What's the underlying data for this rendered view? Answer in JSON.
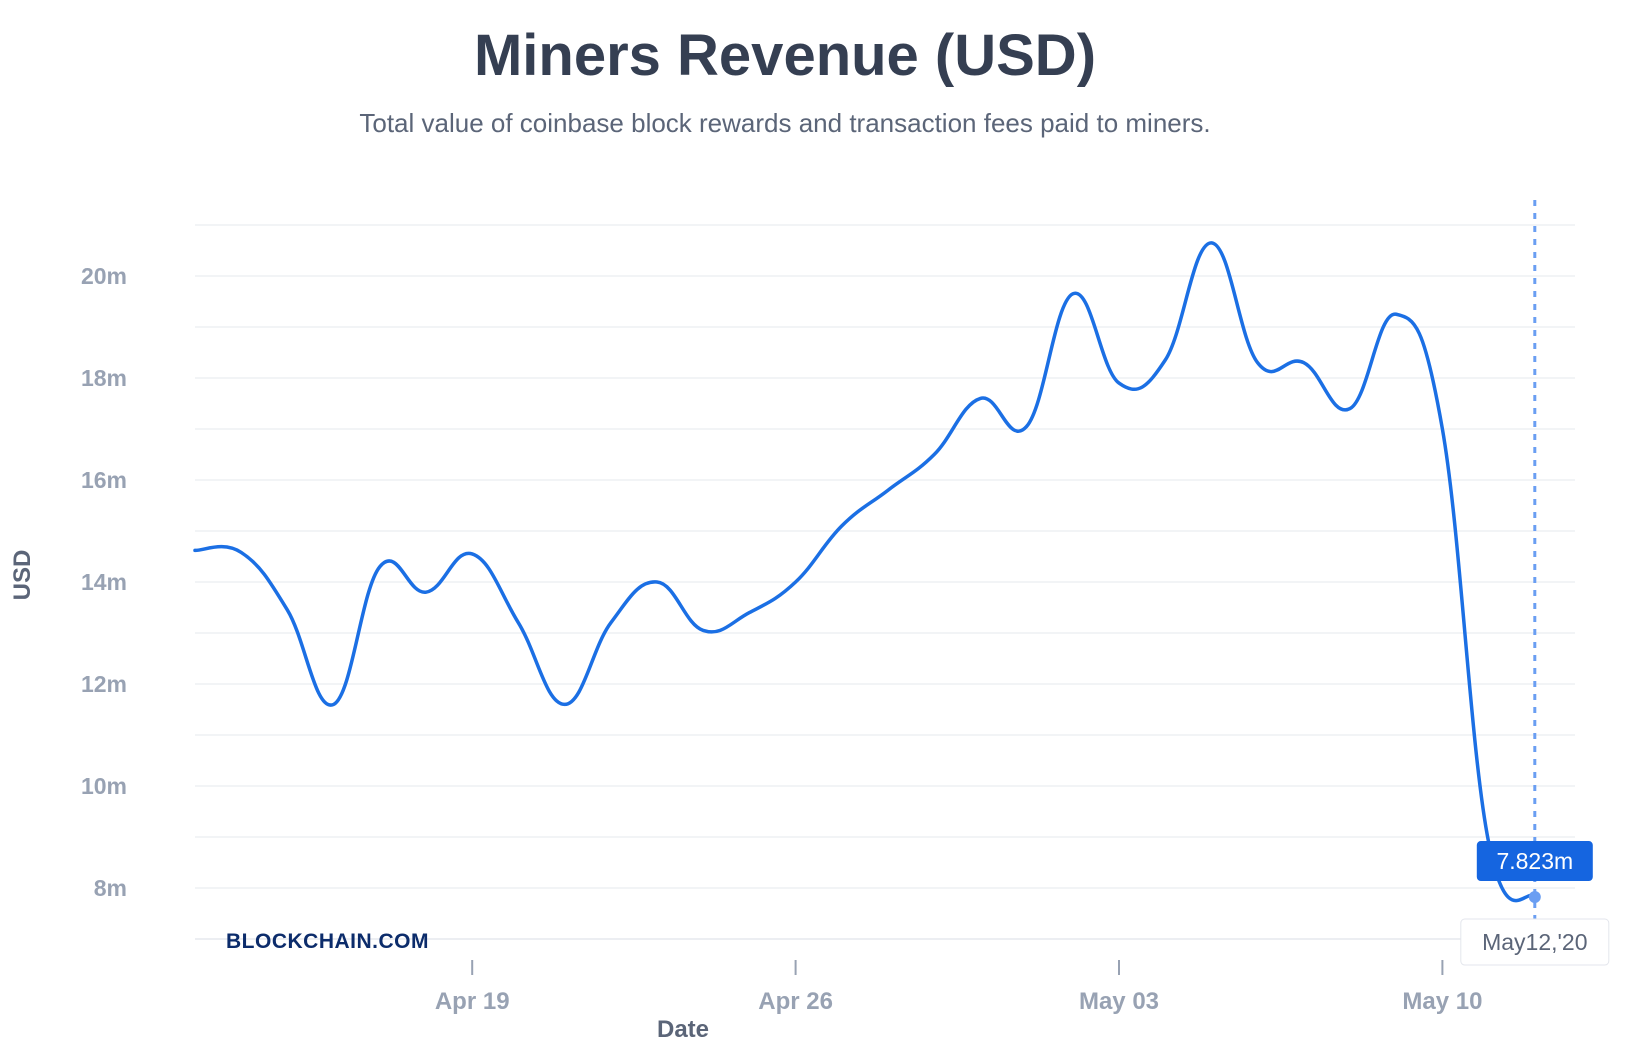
{
  "title": "Miners Revenue (USD)",
  "subtitle": "Total value of coinbase block rewards and transaction fees paid to miners.",
  "brand": "BLOCKCHAIN.COM",
  "tooltip": {
    "value": "7.823m",
    "date": "May12,'20"
  },
  "colors": {
    "line": "#1b6fe4",
    "grid": "#e6e8ee",
    "accent": "#1565e0",
    "marker": "#6a9ef2"
  },
  "chart_data": {
    "type": "line",
    "title": "Miners Revenue (USD)",
    "subtitle": "Total value of coinbase block rewards and transaction fees paid to miners.",
    "xlabel": "Date",
    "ylabel": "USD",
    "x": [
      "2020-04-13",
      "2020-04-14",
      "2020-04-15",
      "2020-04-16",
      "2020-04-17",
      "2020-04-18",
      "2020-04-19",
      "2020-04-20",
      "2020-04-21",
      "2020-04-22",
      "2020-04-23",
      "2020-04-24",
      "2020-04-25",
      "2020-04-26",
      "2020-04-27",
      "2020-04-28",
      "2020-04-29",
      "2020-04-30",
      "2020-05-01",
      "2020-05-02",
      "2020-05-03",
      "2020-05-04",
      "2020-05-05",
      "2020-05-06",
      "2020-05-07",
      "2020-05-08",
      "2020-05-09",
      "2020-05-10",
      "2020-05-11",
      "2020-05-12"
    ],
    "series": [
      {
        "values": [
          14.62,
          14.58,
          13.45,
          11.6,
          14.3,
          13.8,
          14.55,
          13.2,
          11.6,
          13.2,
          14.0,
          13.05,
          13.4,
          14.0,
          15.1,
          15.8,
          16.5,
          17.6,
          17.05,
          19.65,
          17.9,
          18.35,
          20.65,
          18.3,
          18.3,
          17.4,
          19.25,
          17.0,
          8.9,
          7.823
        ]
      }
    ],
    "x_ticks": [
      "Apr 19",
      "Apr 26",
      "May 03",
      "May 10"
    ],
    "y_ticks": [
      "8m",
      "10m",
      "12m",
      "14m",
      "16m",
      "18m",
      "20m"
    ],
    "y_tick_values": [
      8,
      10,
      12,
      14,
      16,
      18,
      20
    ],
    "ylim": [
      7,
      21
    ],
    "units": "millions USD",
    "grid": true,
    "highlight": {
      "date": "2020-05-12",
      "value": 7.823
    }
  }
}
